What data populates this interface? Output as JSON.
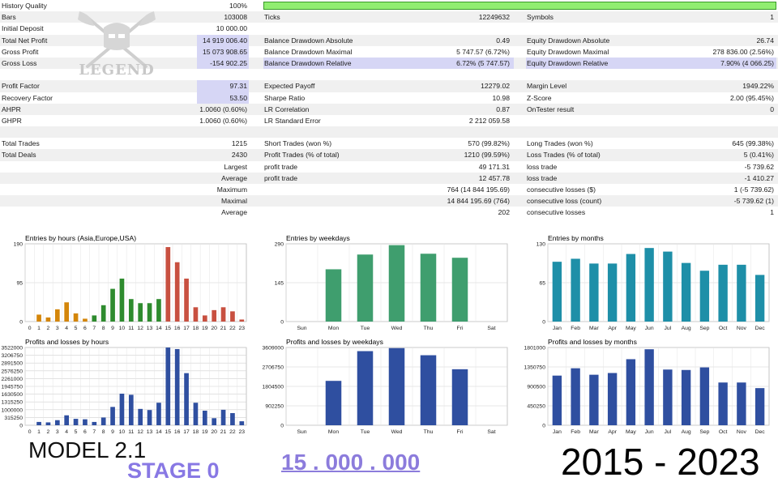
{
  "report": {
    "rows": [
      {
        "c1": [
          "History Quality",
          "100%"
        ],
        "bar": true
      },
      {
        "c1": [
          "Bars",
          "103008"
        ],
        "c2": [
          "Ticks",
          "12249632"
        ],
        "c3": [
          "Symbols",
          "1"
        ]
      },
      {
        "c1": [
          "Initial Deposit",
          "10 000.00"
        ]
      },
      {
        "c1": [
          "Total Net Profit",
          "14 919 006.40"
        ],
        "c1hl": true,
        "c2": [
          "Balance Drawdown Absolute",
          "0.49"
        ],
        "c3": [
          "Equity Drawdown Absolute",
          "26.74"
        ]
      },
      {
        "c1": [
          "Gross Profit",
          "15 073 908.65"
        ],
        "c1hl": true,
        "c2": [
          "Balance Drawdown Maximal",
          "5 747.57 (6.72%)"
        ],
        "c3": [
          "Equity Drawdown Maximal",
          "278 836.00 (2.56%)"
        ]
      },
      {
        "c1": [
          "Gross Loss",
          "-154 902.25"
        ],
        "c1hl": true,
        "c2": [
          "Balance Drawdown Relative",
          "6.72% (5 747.57)"
        ],
        "c3": [
          "Equity Drawdown Relative",
          "7.90% (4 066.25)"
        ],
        "c23hl": true
      },
      {},
      {
        "c1": [
          "Profit Factor",
          "97.31"
        ],
        "c1hl": true,
        "c2": [
          "Expected Payoff",
          "12279.02"
        ],
        "c3": [
          "Margin Level",
          "1949.22%"
        ]
      },
      {
        "c1": [
          "Recovery Factor",
          "53.50"
        ],
        "c1hl": true,
        "c2": [
          "Sharpe Ratio",
          "10.98"
        ],
        "c3": [
          "Z-Score",
          "2.00 (95.45%)"
        ]
      },
      {
        "c1": [
          "AHPR",
          "1.0060 (0.60%)"
        ],
        "c2": [
          "LR Correlation",
          "0.87"
        ],
        "c3": [
          "OnTester result",
          "0"
        ]
      },
      {
        "c1": [
          "GHPR",
          "1.0060 (0.60%)"
        ],
        "c2": [
          "LR Standard Error",
          "2 212 059.58"
        ]
      },
      {},
      {
        "c1": [
          "Total Trades",
          "1215"
        ],
        "c2": [
          "Short Trades (won %)",
          "570 (99.82%)"
        ],
        "c3": [
          "Long Trades (won %)",
          "645 (99.38%)"
        ]
      },
      {
        "c1": [
          "Total Deals",
          "2430"
        ],
        "c2": [
          "Profit Trades (% of total)",
          "1210 (99.59%)"
        ],
        "c3": [
          "Loss Trades (% of total)",
          "5 (0.41%)"
        ]
      },
      {
        "c1": [
          "",
          "Largest"
        ],
        "c2": [
          "profit trade",
          "49 171.31"
        ],
        "c3": [
          "loss trade",
          "-5 739.62"
        ]
      },
      {
        "c1": [
          "",
          "Average"
        ],
        "c2": [
          "profit trade",
          "12 457.78"
        ],
        "c3": [
          "loss trade",
          "-1 410.27"
        ]
      },
      {
        "c1": [
          "",
          "Maximum"
        ],
        "c2": [
          "",
          "764 (14 844 195.69)"
        ],
        "c3": [
          "consecutive losses ($)",
          "1 (-5 739.62)"
        ]
      },
      {
        "c1": [
          "",
          "Maximal"
        ],
        "c2": [
          "",
          "14 844 195.69 (764)"
        ],
        "c3": [
          "consecutive loss (count)",
          "-5 739.62 (1)"
        ]
      },
      {
        "c1": [
          "",
          "Average"
        ],
        "c2": [
          "",
          "202"
        ],
        "c3": [
          "consecutive losses",
          "1"
        ]
      }
    ]
  },
  "logo": {
    "text": "LEGEND"
  },
  "labels": {
    "model": "MODEL 2.1",
    "stage": "STAGE 0",
    "deposit": "15 . 000 . 000",
    "years": "2015 - 2023"
  },
  "chart_data": [
    {
      "id": "entries-hours",
      "type": "bar",
      "title": "Entries by hours (Asia,Europe,USA)",
      "categories": [
        "0",
        "1",
        "2",
        "3",
        "4",
        "5",
        "6",
        "7",
        "8",
        "9",
        "10",
        "11",
        "12",
        "13",
        "14",
        "15",
        "16",
        "17",
        "18",
        "19",
        "20",
        "21",
        "22",
        "23"
      ],
      "values": [
        0,
        17,
        10,
        30,
        47,
        20,
        7,
        15,
        40,
        80,
        105,
        55,
        45,
        45,
        55,
        182,
        145,
        105,
        35,
        15,
        28,
        35,
        25,
        5
      ],
      "colors": [
        "#d4860a",
        "#d4860a",
        "#d4860a",
        "#d4860a",
        "#d4860a",
        "#d4860a",
        "#d4860a",
        "#2e8b2e",
        "#2e8b2e",
        "#2e8b2e",
        "#2e8b2e",
        "#2e8b2e",
        "#2e8b2e",
        "#2e8b2e",
        "#2e8b2e",
        "#c85040",
        "#c85040",
        "#c85040",
        "#c85040",
        "#c85040",
        "#c85040",
        "#c85040",
        "#c85040",
        "#c85040"
      ],
      "ylim": [
        0,
        190
      ],
      "yticks": [
        "190",
        "95",
        "0"
      ],
      "grid": true
    },
    {
      "id": "entries-weekdays",
      "type": "bar",
      "title": "Entries by weekdays",
      "categories": [
        "Sun",
        "Mon",
        "Tue",
        "Wed",
        "Thu",
        "Fri",
        "Sat"
      ],
      "values": [
        0,
        195,
        250,
        285,
        253,
        238,
        0
      ],
      "colors": [
        "#3f9e6e",
        "#3f9e6e",
        "#3f9e6e",
        "#3f9e6e",
        "#3f9e6e",
        "#3f9e6e",
        "#3f9e6e"
      ],
      "ylim": [
        0,
        290
      ],
      "yticks": [
        "290",
        "145",
        "0"
      ],
      "grid": true
    },
    {
      "id": "entries-months",
      "type": "bar",
      "title": "Entries by months",
      "categories": [
        "Jan",
        "Feb",
        "Mar",
        "Apr",
        "May",
        "Jun",
        "Jul",
        "Aug",
        "Sep",
        "Oct",
        "Nov",
        "Dec"
      ],
      "values": [
        100,
        105,
        97,
        97,
        113,
        123,
        117,
        98,
        85,
        95,
        95,
        78
      ],
      "colors": [
        "#1e8fa8",
        "#1e8fa8",
        "#1e8fa8",
        "#1e8fa8",
        "#1e8fa8",
        "#1e8fa8",
        "#1e8fa8",
        "#1e8fa8",
        "#1e8fa8",
        "#1e8fa8",
        "#1e8fa8",
        "#1e8fa8"
      ],
      "ylim": [
        0,
        130
      ],
      "yticks": [
        "130",
        "65",
        "0"
      ],
      "grid": true
    },
    {
      "id": "pl-hours",
      "type": "bar",
      "title": "Profits and losses by hours",
      "categories": [
        "0",
        "1",
        "2",
        "3",
        "4",
        "5",
        "6",
        "7",
        "8",
        "9",
        "10",
        "11",
        "12",
        "13",
        "14",
        "15",
        "16",
        "17",
        "18",
        "19",
        "20",
        "21",
        "22",
        "23"
      ],
      "values": [
        0,
        150000,
        130000,
        230000,
        450000,
        290000,
        270000,
        150000,
        350000,
        830000,
        1430000,
        1380000,
        740000,
        690000,
        1020000,
        3520000,
        3450000,
        2360000,
        1020000,
        660000,
        320000,
        700000,
        550000,
        180000
      ],
      "colors": [
        "#2f4fa0",
        "#2f4fa0",
        "#2f4fa0",
        "#2f4fa0",
        "#2f4fa0",
        "#2f4fa0",
        "#2f4fa0",
        "#2f4fa0",
        "#2f4fa0",
        "#2f4fa0",
        "#2f4fa0",
        "#2f4fa0",
        "#2f4fa0",
        "#2f4fa0",
        "#2f4fa0",
        "#2f4fa0",
        "#2f4fa0",
        "#2f4fa0",
        "#2f4fa0",
        "#2f4fa0",
        "#2f4fa0",
        "#2f4fa0",
        "#2f4fa0",
        "#2f4fa0"
      ],
      "ylim": [
        0,
        3522000
      ],
      "yticks": [
        "3522000",
        "3206750",
        "2891500",
        "2576250",
        "2261000",
        "1945750",
        "1630500",
        "1315250",
        "1000000",
        "315250",
        "0"
      ],
      "grid": true
    },
    {
      "id": "pl-weekdays",
      "type": "bar",
      "title": "Profits and losses by weekdays",
      "categories": [
        "Sun",
        "Mon",
        "Tue",
        "Wed",
        "Thu",
        "Fri",
        "Sat"
      ],
      "values": [
        0,
        2060000,
        3440000,
        3580000,
        3250000,
        2600000,
        0
      ],
      "colors": [
        "#2f4fa0",
        "#2f4fa0",
        "#2f4fa0",
        "#2f4fa0",
        "#2f4fa0",
        "#2f4fa0",
        "#2f4fa0"
      ],
      "ylim": [
        0,
        3609000
      ],
      "yticks": [
        "3609000",
        "2706750",
        "1804500",
        "902250",
        "0"
      ],
      "grid": true
    },
    {
      "id": "pl-months",
      "type": "bar",
      "title": "Profits and losses by months",
      "categories": [
        "Jan",
        "Feb",
        "Mar",
        "Apr",
        "May",
        "Jun",
        "Jul",
        "Aug",
        "Sep",
        "Oct",
        "Nov",
        "Dec"
      ],
      "values": [
        1150000,
        1320000,
        1170000,
        1210000,
        1530000,
        1760000,
        1290000,
        1280000,
        1340000,
        990000,
        990000,
        860000
      ],
      "colors": [
        "#2f4fa0",
        "#2f4fa0",
        "#2f4fa0",
        "#2f4fa0",
        "#2f4fa0",
        "#2f4fa0",
        "#2f4fa0",
        "#2f4fa0",
        "#2f4fa0",
        "#2f4fa0",
        "#2f4fa0",
        "#2f4fa0"
      ],
      "ylim": [
        0,
        1801000
      ],
      "yticks": [
        "1801000",
        "1350750",
        "900500",
        "450250",
        "0"
      ],
      "grid": true
    }
  ]
}
